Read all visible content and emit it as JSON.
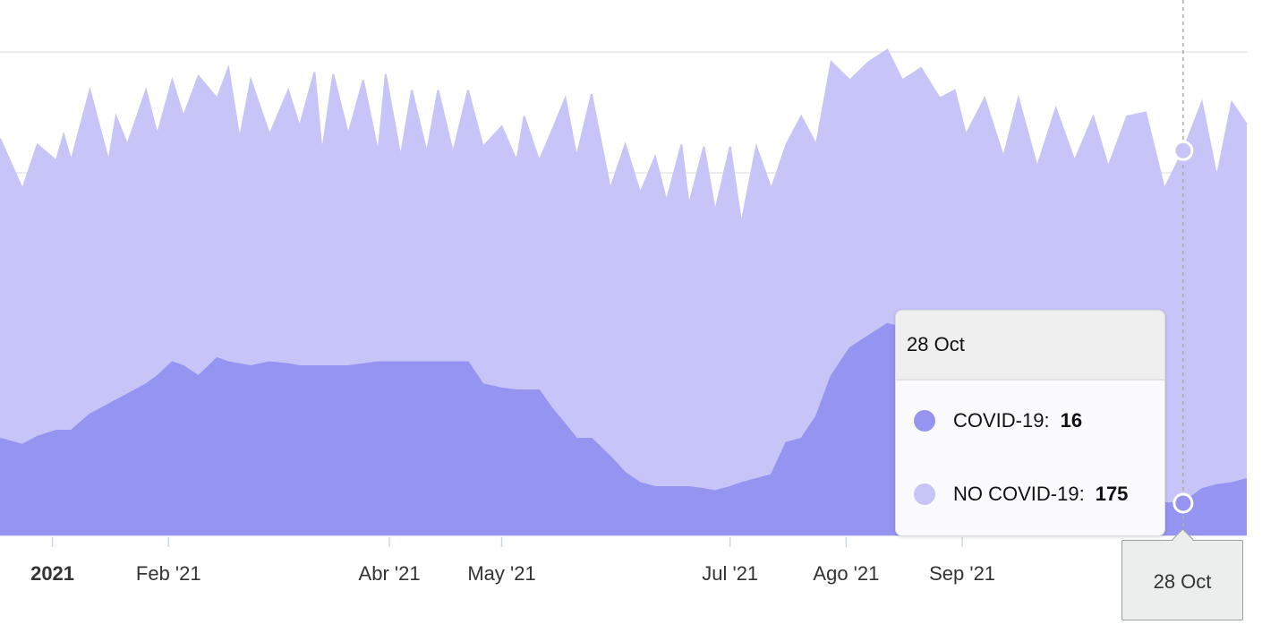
{
  "chart_data": {
    "type": "area",
    "stacking": "normal",
    "title": "",
    "xlabel": "",
    "ylabel": "",
    "x_unit": "days since 1 Jan 2021",
    "xlim": [
      -14,
      319
    ],
    "ylim": [
      0,
      240
    ],
    "grid": true,
    "y_gridlines": [
      0,
      60,
      120,
      180,
      240
    ],
    "x_ticks": [
      {
        "day": 0,
        "label": "2021",
        "bold": true
      },
      {
        "day": 31,
        "label": "Feb '21"
      },
      {
        "day": 90,
        "label": "Abr '21"
      },
      {
        "day": 120,
        "label": "May '21"
      },
      {
        "day": 181,
        "label": "Jul '21"
      },
      {
        "day": 212,
        "label": "Ago '21"
      },
      {
        "day": 243,
        "label": "Sep '21"
      }
    ],
    "x": [
      -14,
      -8,
      -4,
      1,
      3,
      5,
      10,
      15,
      17,
      20,
      25,
      28,
      32,
      35,
      39,
      44,
      47,
      50,
      53,
      58,
      63,
      66,
      70,
      72,
      75,
      79,
      83,
      87,
      89,
      93,
      96,
      100,
      103,
      107,
      111,
      115,
      120,
      124,
      126,
      130,
      133,
      137,
      140,
      144,
      149,
      153,
      157,
      161,
      164,
      168,
      170,
      174,
      177,
      181,
      184,
      188,
      192,
      196,
      200,
      204,
      208,
      213,
      218,
      223,
      227,
      232,
      237,
      241,
      244,
      249,
      254,
      258,
      263,
      268,
      273,
      278,
      282,
      287,
      292,
      297,
      302,
      307,
      311,
      315,
      319
    ],
    "series": [
      {
        "name": "COVID-19",
        "color": "#9594f1",
        "values": [
          48,
          45,
          49,
          52,
          52,
          52,
          60,
          65,
          67,
          70,
          75,
          79,
          86,
          84,
          79,
          88,
          86,
          85,
          84,
          86,
          85,
          84,
          84,
          84,
          84,
          84,
          85,
          86,
          86,
          86,
          86,
          86,
          86,
          86,
          86,
          75,
          73,
          72,
          72,
          72,
          64,
          55,
          48,
          48,
          39,
          31,
          26,
          24,
          24,
          24,
          24,
          23,
          22,
          24,
          26,
          28,
          30,
          46,
          48,
          59,
          79,
          93,
          99,
          105,
          103,
          92,
          80,
          70,
          61,
          52,
          43,
          36,
          31,
          26,
          23,
          21,
          18,
          18,
          17,
          16,
          16,
          23,
          25,
          26,
          28
        ]
      },
      {
        "name": "NO COVID-19",
        "color": "#c7c5f7",
        "values": [
          149,
          127,
          145,
          134,
          147,
          134,
          161,
          121,
          141,
          124,
          146,
          120,
          140,
          124,
          149,
          129,
          146,
          112,
          142,
          113,
          136,
          119,
          146,
          106,
          145,
          115,
          141,
          104,
          143,
          102,
          135,
          104,
          135,
          104,
          135,
          118,
          130,
          114,
          136,
          114,
          135,
          162,
          140,
          171,
          133,
          163,
          144,
          164,
          142,
          170,
          140,
          170,
          139,
          169,
          129,
          165,
          142,
          148,
          160,
          135,
          156,
          133,
          136,
          136,
          123,
          140,
          137,
          151,
          138,
          165,
          145,
          181,
          152,
          186,
          163,
          187,
          165,
          190,
          193,
          156,
          175,
          192,
          153,
          189,
          176
        ]
      }
    ],
    "tooltip": {
      "date": "28 Oct",
      "day": 300,
      "rows": [
        {
          "name": "COVID-19",
          "label": "COVID-19:",
          "value": "16",
          "color": "#9594f1"
        },
        {
          "name": "NO COVID-19",
          "label": "NO COVID-19:",
          "value": "175",
          "color": "#c7c5f7"
        }
      ]
    },
    "crosshair_label": "28 Oct"
  }
}
